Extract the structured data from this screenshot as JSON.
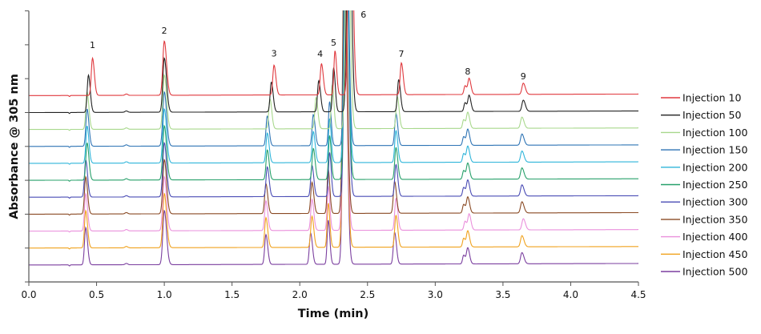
{
  "chart_data": {
    "type": "line",
    "title": "",
    "xlabel": "Time (min)",
    "ylabel": "Absorbance @ 305 nm",
    "xlim": [
      0,
      4.5
    ],
    "ylim": [
      0,
      8
    ],
    "xticks": [
      "0.0",
      "0.5",
      "1.0",
      "1.5",
      "2.0",
      "2.5",
      "3.0",
      "3.5",
      "4.0",
      "4.5"
    ],
    "yticks_labeled": false,
    "grid": false,
    "legend_position": "right",
    "peak_labels": [
      {
        "text": "1",
        "x": 0.47,
        "y": 6.9
      },
      {
        "text": "2",
        "x": 1.0,
        "y": 7.33
      },
      {
        "text": "3",
        "x": 1.81,
        "y": 6.66
      },
      {
        "text": "4",
        "x": 2.15,
        "y": 6.64
      },
      {
        "text": "5",
        "x": 2.25,
        "y": 6.97
      },
      {
        "text": "6",
        "x": 2.47,
        "y": 7.8
      },
      {
        "text": "7",
        "x": 2.75,
        "y": 6.64
      },
      {
        "text": "8",
        "x": 3.24,
        "y": 6.12
      },
      {
        "text": "9",
        "x": 3.65,
        "y": 5.98
      }
    ],
    "peak_heights": [
      1.1,
      1.6,
      0.88,
      0.92,
      1.3,
      9,
      0.94,
      0.26,
      0.47,
      0.33
    ],
    "series": [
      {
        "name": "Injection 10",
        "color": "#e0393e",
        "offset": 5.5,
        "retention_times": [
          0.47,
          1.0,
          1.81,
          2.16,
          2.26,
          2.37,
          2.75,
          3.22,
          3.25,
          3.65
        ]
      },
      {
        "name": "Injection 50",
        "color": "#222222",
        "offset": 5.0,
        "retention_times": [
          0.44,
          1.0,
          1.79,
          2.14,
          2.25,
          2.36,
          2.73,
          3.22,
          3.25,
          3.65
        ]
      },
      {
        "name": "Injection 100",
        "color": "#a8d88c",
        "offset": 4.5,
        "retention_times": [
          0.43,
          1.0,
          1.78,
          2.12,
          2.24,
          2.35,
          2.72,
          3.21,
          3.24,
          3.64
        ]
      },
      {
        "name": "Injection 150",
        "color": "#2e74b5",
        "offset": 4.0,
        "retention_times": [
          0.43,
          1.0,
          1.76,
          2.1,
          2.22,
          2.34,
          2.71,
          3.21,
          3.24,
          3.64
        ]
      },
      {
        "name": "Injection 200",
        "color": "#2fb5da",
        "offset": 3.5,
        "retention_times": [
          0.43,
          1.0,
          1.76,
          2.1,
          2.22,
          2.34,
          2.71,
          3.21,
          3.24,
          3.64
        ]
      },
      {
        "name": "Injection 250",
        "color": "#27a06a",
        "offset": 3.0,
        "retention_times": [
          0.43,
          1.0,
          1.76,
          2.1,
          2.22,
          2.34,
          2.71,
          3.21,
          3.24,
          3.64
        ]
      },
      {
        "name": "Injection 300",
        "color": "#4a4cb5",
        "offset": 2.5,
        "retention_times": [
          0.42,
          1.0,
          1.76,
          2.09,
          2.22,
          2.34,
          2.71,
          3.21,
          3.24,
          3.64
        ]
      },
      {
        "name": "Injection 350",
        "color": "#8a4a24",
        "offset": 2.0,
        "retention_times": [
          0.42,
          1.0,
          1.75,
          2.09,
          2.21,
          2.33,
          2.7,
          3.21,
          3.24,
          3.64
        ]
      },
      {
        "name": "Injection 400",
        "color": "#ea90dc",
        "offset": 1.5,
        "retention_times": [
          0.42,
          1.0,
          1.75,
          2.09,
          2.21,
          2.33,
          2.71,
          3.22,
          3.25,
          3.65
        ]
      },
      {
        "name": "Injection 450",
        "color": "#f0a21e",
        "offset": 1.0,
        "retention_times": [
          0.42,
          1.0,
          1.75,
          2.09,
          2.21,
          2.33,
          2.71,
          3.21,
          3.24,
          3.64
        ]
      },
      {
        "name": "Injection 500",
        "color": "#7b3f9f",
        "offset": 0.5,
        "retention_times": [
          0.42,
          1.0,
          1.75,
          2.08,
          2.21,
          2.33,
          2.7,
          3.21,
          3.24,
          3.64
        ]
      }
    ]
  }
}
